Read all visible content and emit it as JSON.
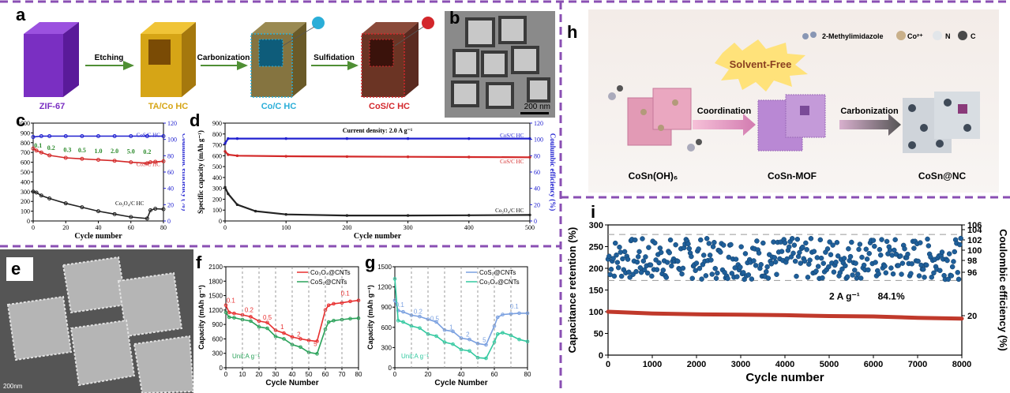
{
  "panel_labels": {
    "a": "a",
    "b": "b",
    "c": "c",
    "d": "d",
    "e": "e",
    "f": "f",
    "g": "g",
    "h": "h",
    "i": "i"
  },
  "schematic_a": {
    "steps": [
      "Etching",
      "Carbonization",
      "Sulfidation"
    ],
    "stages": [
      "ZIF-67",
      "TA/Co HC",
      "Co/C HC",
      "CoS/C HC"
    ],
    "stage_colors": [
      "#7a2fc2",
      "#d6a516",
      "#2aaed8",
      "#d3262b"
    ]
  },
  "tem_b": {
    "scale_bar": "200 nm"
  },
  "sem_e": {
    "scale_bar": "200nm"
  },
  "schematic_h": {
    "title_burst": "Solvent-Free",
    "legend": [
      "2-Methylimidazole",
      "Co²⁺",
      "N",
      "C"
    ],
    "steps": [
      "Coordination",
      "Carbonization"
    ],
    "stages": [
      "CoSn(OH)₆",
      "CoSn-MOF",
      "CoSn@NC"
    ]
  },
  "chart_data": [
    {
      "panel": "c",
      "type": "scatter",
      "xlabel": "Cycle number",
      "ylabel": "",
      "y2label": "Coulumbic efficiency (%)",
      "xlim": [
        0,
        80
      ],
      "ylim": [
        0,
        1000
      ],
      "y2lim": [
        0,
        120
      ],
      "xticks": [
        "0",
        "20",
        "40",
        "60",
        "80"
      ],
      "yticks": [
        "0",
        "100",
        "200",
        "300",
        "400",
        "500",
        "600",
        "700",
        "800",
        "900",
        "1000"
      ],
      "y2ticks": [
        "0",
        "20",
        "40",
        "60",
        "80",
        "100",
        "120"
      ],
      "rate_labels": [
        "0.1",
        "0.2",
        "0.3",
        "0.5",
        "1.0",
        "2.0",
        "5.0",
        "0.2"
      ],
      "series": [
        {
          "name": "CoS/C HC",
          "color": "#d32828",
          "x": [
            0,
            2,
            5,
            10,
            20,
            30,
            40,
            50,
            60,
            70,
            72,
            75,
            80
          ],
          "y": [
            740,
            720,
            700,
            670,
            645,
            635,
            625,
            615,
            600,
            590,
            600,
            605,
            610
          ]
        },
        {
          "name": "Co₃O₄/C HC",
          "color": "#222222",
          "x": [
            0,
            2,
            5,
            10,
            20,
            30,
            40,
            50,
            60,
            70,
            72,
            75,
            80
          ],
          "y": [
            300,
            290,
            260,
            230,
            180,
            140,
            100,
            70,
            40,
            25,
            110,
            125,
            120
          ]
        },
        {
          "name": "CoS/C HC",
          "color": "#2020d0",
          "x": [
            0,
            5,
            10,
            20,
            30,
            40,
            50,
            60,
            70,
            80
          ],
          "y2": [
            103,
            104,
            104,
            104,
            104,
            104,
            104,
            104,
            104,
            104
          ]
        }
      ],
      "series_labels": [
        "CoS/C HC",
        "CoS/C HC",
        "Co₃O₄/C HC"
      ]
    },
    {
      "panel": "d",
      "type": "line",
      "title": "Current density: 2.0 A g⁻¹",
      "xlabel": "Cycle number",
      "ylabel": "Specific capacity (mAh g⁻¹)",
      "y2label": "Coulumbic efficiency (%)",
      "xlim": [
        0,
        500
      ],
      "ylim": [
        0,
        900
      ],
      "y2lim": [
        0,
        120
      ],
      "xticks": [
        "0",
        "100",
        "200",
        "300",
        "400",
        "500"
      ],
      "yticks": [
        "0",
        "100",
        "200",
        "300",
        "400",
        "500",
        "600",
        "700",
        "800",
        "900"
      ],
      "y2ticks": [
        "0",
        "20",
        "40",
        "60",
        "80",
        "100",
        "120"
      ],
      "series": [
        {
          "name": "CoS/C HC",
          "color": "#2020d0",
          "x": [
            0,
            5,
            20,
            100,
            200,
            300,
            400,
            500
          ],
          "y2": [
            95,
            101,
            101,
            101,
            101,
            101,
            101,
            101
          ]
        },
        {
          "name": "CoS/C HC",
          "color": "#d32828",
          "x": [
            0,
            5,
            20,
            100,
            200,
            300,
            400,
            500
          ],
          "y": [
            640,
            610,
            600,
            595,
            592,
            590,
            588,
            586
          ]
        },
        {
          "name": "Co₃O₄/C HC",
          "color": "#222222",
          "x": [
            0,
            5,
            20,
            50,
            100,
            200,
            300,
            400,
            500
          ],
          "y": [
            310,
            250,
            150,
            90,
            60,
            50,
            50,
            52,
            55
          ]
        }
      ],
      "series_labels": [
        "CoS/C HC",
        "CoS/C HC",
        "Co₃O₄/C HC"
      ]
    },
    {
      "panel": "f",
      "type": "line",
      "xlabel": "Cycle Number",
      "ylabel": "Capacity (mAh g⁻¹)",
      "xlim": [
        0,
        80
      ],
      "ylim": [
        0,
        2100
      ],
      "xticks": [
        "0",
        "10",
        "20",
        "30",
        "40",
        "50",
        "60",
        "70",
        "80"
      ],
      "yticks": [
        "0",
        "300",
        "600",
        "900",
        "1200",
        "1500",
        "1800",
        "2100"
      ],
      "unit_note": "Unit:A g⁻¹",
      "rate_labels": [
        "0.1",
        "0.2",
        "0.5",
        "1",
        "2",
        "5",
        "0.1"
      ],
      "series": [
        {
          "name": "Co₃O₄@CNTs",
          "color": "#e83030",
          "x": [
            0,
            2,
            5,
            10,
            15,
            20,
            25,
            30,
            35,
            40,
            45,
            50,
            55,
            60,
            62,
            65,
            70,
            75,
            80
          ],
          "y": [
            1300,
            1150,
            1130,
            1100,
            1060,
            970,
            940,
            780,
            720,
            640,
            600,
            570,
            550,
            1200,
            1300,
            1330,
            1350,
            1380,
            1400
          ]
        },
        {
          "name": "CoS₂@CNTs",
          "color": "#2aa25a",
          "x": [
            0,
            2,
            5,
            10,
            15,
            20,
            25,
            30,
            35,
            40,
            45,
            50,
            55,
            60,
            62,
            65,
            70,
            75,
            80
          ],
          "y": [
            1150,
            1050,
            1040,
            1000,
            970,
            850,
            820,
            650,
            600,
            480,
            430,
            320,
            290,
            800,
            950,
            980,
            1000,
            1020,
            1030
          ]
        }
      ]
    },
    {
      "panel": "g",
      "type": "line",
      "xlabel": "Cycle Number",
      "ylabel": "Capacity (mAh g⁻¹)",
      "xlim": [
        0,
        80
      ],
      "ylim": [
        0,
        1500
      ],
      "xticks": [
        "0",
        "20",
        "40",
        "60",
        "80"
      ],
      "yticks": [
        "0",
        "300",
        "600",
        "900",
        "1200",
        "1500"
      ],
      "unit_note": "Unit:A g⁻¹",
      "rate_labels": [
        "0.1",
        "0.2",
        "0.5",
        "1",
        "2",
        "5",
        "0.1"
      ],
      "series": [
        {
          "name": "CoS₂@CNTs",
          "color": "#7aa0e0",
          "x": [
            0,
            2,
            5,
            10,
            15,
            20,
            25,
            30,
            35,
            40,
            45,
            50,
            55,
            60,
            62,
            65,
            70,
            75,
            80
          ],
          "y": [
            1000,
            850,
            830,
            780,
            760,
            720,
            680,
            560,
            540,
            440,
            420,
            360,
            340,
            620,
            750,
            790,
            800,
            810,
            810
          ]
        },
        {
          "name": "Co₃O₄@CNTs",
          "color": "#33c9a0",
          "x": [
            0,
            2,
            5,
            10,
            15,
            20,
            25,
            30,
            35,
            40,
            45,
            50,
            55,
            60,
            62,
            65,
            70,
            75,
            80
          ],
          "y": [
            1320,
            700,
            680,
            620,
            590,
            500,
            470,
            380,
            350,
            270,
            250,
            150,
            140,
            380,
            500,
            520,
            480,
            420,
            390
          ]
        }
      ]
    },
    {
      "panel": "i",
      "type": "scatter",
      "xlabel": "Cycle number",
      "ylabel": "Capacitance retention (%)",
      "y2label": "Coulombic efficiency (%)",
      "xlim": [
        0,
        8000
      ],
      "ylim": [
        0,
        300
      ],
      "xticks": [
        "0",
        "1000",
        "2000",
        "3000",
        "4000",
        "5000",
        "6000",
        "7000",
        "8000"
      ],
      "yticks": [
        "0",
        "50",
        "100",
        "150",
        "200",
        "250",
        "300"
      ],
      "y2ticks": [
        "20",
        "96",
        "98",
        "100",
        "102",
        "104",
        "106"
      ],
      "annotation": "2 A g⁻¹",
      "annotation_value": "84.1%",
      "series": [
        {
          "name": "Capacitance retention",
          "color": "#c0392b",
          "x": [
            0,
            1000,
            2000,
            3000,
            4000,
            5000,
            6000,
            7000,
            8000
          ],
          "y": [
            100,
            96,
            94,
            93,
            92,
            90,
            89,
            86,
            84.1
          ]
        },
        {
          "name": "Coulombic efficiency",
          "color": "#1f5f9a",
          "x": [
            0,
            8000
          ],
          "y2": [
            100,
            100
          ]
        }
      ]
    }
  ]
}
